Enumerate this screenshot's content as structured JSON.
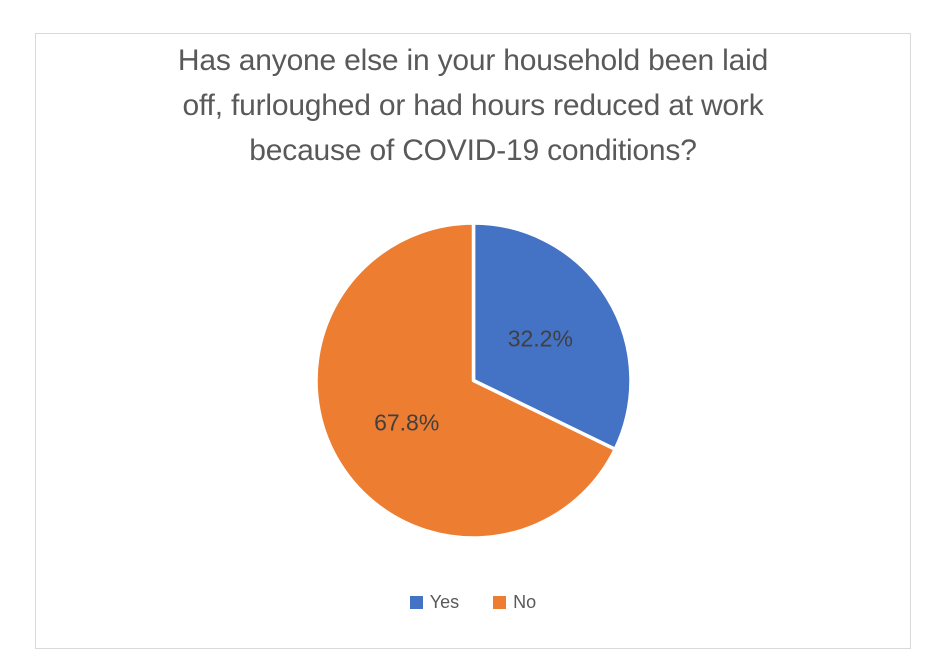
{
  "chart_data": {
    "type": "pie",
    "title": "Has anyone else in your household been laid off, furloughed or had hours reduced at work because of COVID-19 conditions?",
    "title_lines": [
      "Has anyone else in your household been laid",
      "off, furloughed or had hours reduced at work",
      "because of COVID-19 conditions?"
    ],
    "categories": [
      "Yes",
      "No"
    ],
    "values": [
      32.2,
      67.8
    ],
    "data_labels": [
      "32.2%",
      "67.8%"
    ],
    "unit": "%",
    "colors": [
      "#4472C4",
      "#ED7D31"
    ],
    "slice_border_color": "#FFFFFF",
    "label_color": "#404040",
    "title_color": "#595959",
    "frame_border_color": "#D9D9D9",
    "start_angle_deg": 0,
    "direction": "clockwise",
    "legend_position": "bottom",
    "legend": [
      {
        "label": "Yes",
        "color": "#4472C4"
      },
      {
        "label": "No",
        "color": "#ED7D31"
      }
    ]
  }
}
